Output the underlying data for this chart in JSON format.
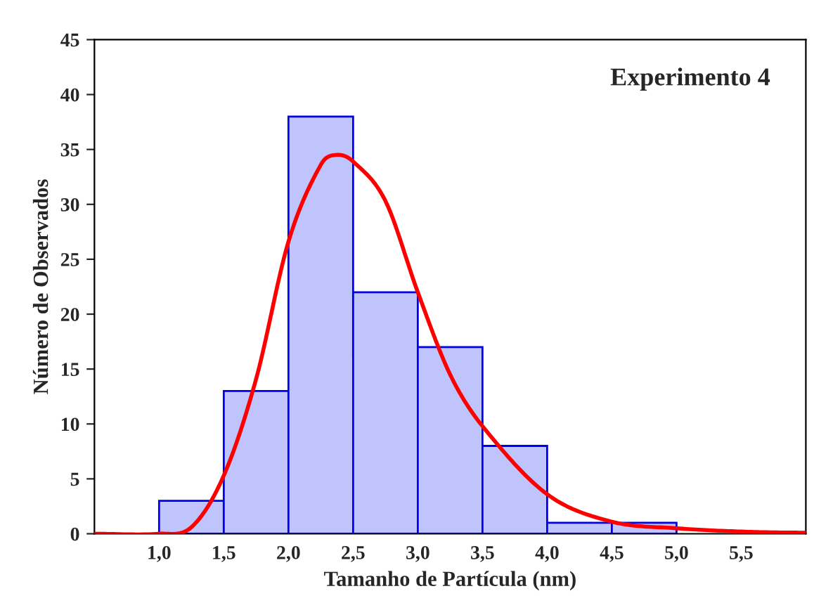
{
  "chart_data": {
    "type": "histogram",
    "xlabel": "Tamanho de Partícula (nm)",
    "ylabel": "Número de Observados",
    "annotations": [
      "Experimento 4"
    ],
    "bins": [
      1.0,
      1.5,
      2.0,
      2.5,
      3.0,
      3.5,
      4.0,
      4.5,
      5.0
    ],
    "series": [
      {
        "color": "#c0c4fc",
        "values": [
          3,
          13,
          38,
          22,
          17,
          8,
          1,
          1
        ]
      },
      {
        "type": "line",
        "color": "#ff0000",
        "x": [
          0.5,
          1.0,
          1.25,
          1.5,
          1.75,
          2.0,
          2.25,
          2.37,
          2.5,
          2.75,
          3.0,
          3.25,
          3.5,
          4.0,
          4.5,
          5.0,
          5.5,
          6.0
        ],
        "values": [
          0,
          0,
          0.6,
          5.3,
          14.1,
          26.6,
          33.6,
          34.5,
          33.9,
          30.3,
          22.0,
          14.5,
          9.8,
          3.6,
          1.1,
          0.5,
          0.2,
          0.1
        ]
      }
    ],
    "xlim": [
      0.5,
      6.0
    ],
    "xticks": [
      {
        "value": 1.0,
        "label": "1,0"
      },
      {
        "value": 1.5,
        "label": "1,5"
      },
      {
        "value": 2.0,
        "label": "2,0"
      },
      {
        "value": 2.5,
        "label": "2,5"
      },
      {
        "value": 3.0,
        "label": "3,0"
      },
      {
        "value": 3.5,
        "label": "3,5"
      },
      {
        "value": 4.0,
        "label": "4,0"
      },
      {
        "value": 4.5,
        "label": "4,5"
      },
      {
        "value": 5.0,
        "label": "5,0"
      },
      {
        "value": 5.5,
        "label": "5,5"
      }
    ],
    "ylim": [
      0,
      45
    ],
    "yticks": [
      0,
      5,
      10,
      15,
      20,
      25,
      30,
      35,
      40,
      45
    ],
    "grid": false,
    "legend": false
  }
}
